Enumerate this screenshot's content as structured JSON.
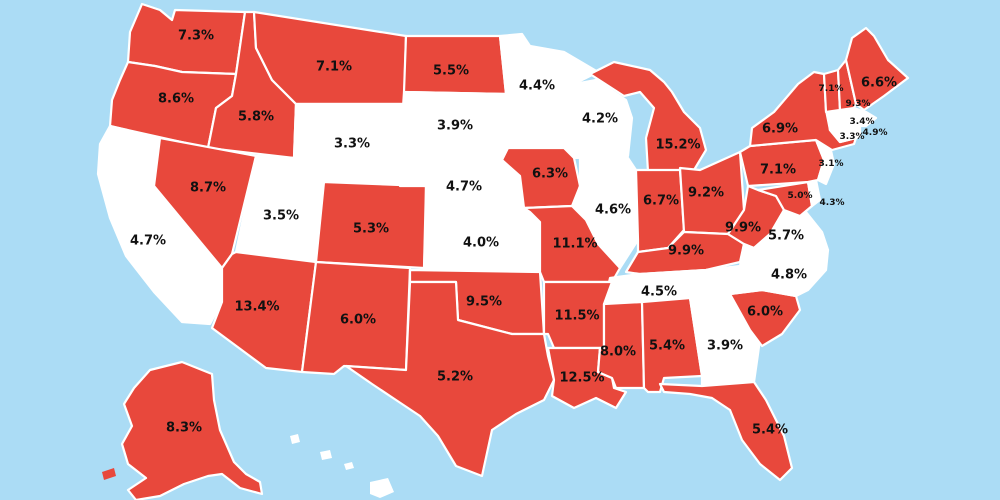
{
  "colors": {
    "ocean": "#abdcf5",
    "highlight": "#e8483c",
    "neutral": "#ffffff",
    "border": "#ffffff",
    "text": "#111111"
  },
  "states": [
    {
      "id": "WA",
      "value": "7.3%",
      "highlight": true
    },
    {
      "id": "OR",
      "value": "8.6%",
      "highlight": true
    },
    {
      "id": "ID",
      "value": "5.8%",
      "highlight": true
    },
    {
      "id": "MT",
      "value": "7.1%",
      "highlight": true
    },
    {
      "id": "ND",
      "value": "5.5%",
      "highlight": true
    },
    {
      "id": "MN",
      "value": "4.4%",
      "highlight": false
    },
    {
      "id": "WI",
      "value": "4.2%",
      "highlight": false
    },
    {
      "id": "MI",
      "value": "15.2%",
      "highlight": true
    },
    {
      "id": "CA",
      "value": "4.7%",
      "highlight": false
    },
    {
      "id": "NV",
      "value": "8.7%",
      "highlight": true
    },
    {
      "id": "UT",
      "value": "3.5%",
      "highlight": false
    },
    {
      "id": "WY",
      "value": "3.3%",
      "highlight": false
    },
    {
      "id": "SD",
      "value": "3.9%",
      "highlight": false
    },
    {
      "id": "NE",
      "value": "4.7%",
      "highlight": false
    },
    {
      "id": "CO",
      "value": "5.3%",
      "highlight": true
    },
    {
      "id": "IA",
      "value": "6.3%",
      "highlight": true
    },
    {
      "id": "IL",
      "value": "4.6%",
      "highlight": false
    },
    {
      "id": "IN",
      "value": "6.7%",
      "highlight": true
    },
    {
      "id": "OH",
      "value": "9.2%",
      "highlight": true
    },
    {
      "id": "PA",
      "value": "7.1%",
      "highlight": true
    },
    {
      "id": "NY",
      "value": "6.9%",
      "highlight": true
    },
    {
      "id": "VT",
      "value": "7.1%",
      "highlight": true
    },
    {
      "id": "NH",
      "value": "9.3%",
      "highlight": true
    },
    {
      "id": "ME",
      "value": "6.6%",
      "highlight": true
    },
    {
      "id": "MA",
      "value": "3.4%",
      "highlight": false
    },
    {
      "id": "RI",
      "value": "4.9%",
      "highlight": false
    },
    {
      "id": "CT",
      "value": "3.3%",
      "highlight": false
    },
    {
      "id": "NJ",
      "value": "3.1%",
      "highlight": false
    },
    {
      "id": "DE",
      "value": "4.3%",
      "highlight": false
    },
    {
      "id": "MD",
      "value": "5.0%",
      "highlight": true
    },
    {
      "id": "WV",
      "value": "9.9%",
      "highlight": true
    },
    {
      "id": "VA",
      "value": "5.7%",
      "highlight": false
    },
    {
      "id": "KY",
      "value": "9.9%",
      "highlight": true
    },
    {
      "id": "KS",
      "value": "4.0%",
      "highlight": false
    },
    {
      "id": "MO",
      "value": "11.1%",
      "highlight": true
    },
    {
      "id": "AZ",
      "value": "13.4%",
      "highlight": true
    },
    {
      "id": "NM",
      "value": "6.0%",
      "highlight": true
    },
    {
      "id": "OK",
      "value": "9.5%",
      "highlight": true
    },
    {
      "id": "AR",
      "value": "11.5%",
      "highlight": true
    },
    {
      "id": "TN",
      "value": "4.5%",
      "highlight": false
    },
    {
      "id": "NC",
      "value": "4.8%",
      "highlight": false
    },
    {
      "id": "SC",
      "value": "6.0%",
      "highlight": true
    },
    {
      "id": "TX",
      "value": "5.2%",
      "highlight": true
    },
    {
      "id": "LA",
      "value": "12.5%",
      "highlight": true
    },
    {
      "id": "MS",
      "value": "8.0%",
      "highlight": true
    },
    {
      "id": "AL",
      "value": "5.4%",
      "highlight": true
    },
    {
      "id": "GA",
      "value": "3.9%",
      "highlight": false
    },
    {
      "id": "FL",
      "value": "5.4%",
      "highlight": true
    },
    {
      "id": "AK",
      "value": "8.3%",
      "highlight": true
    },
    {
      "id": "HI",
      "value": "",
      "highlight": false
    }
  ]
}
